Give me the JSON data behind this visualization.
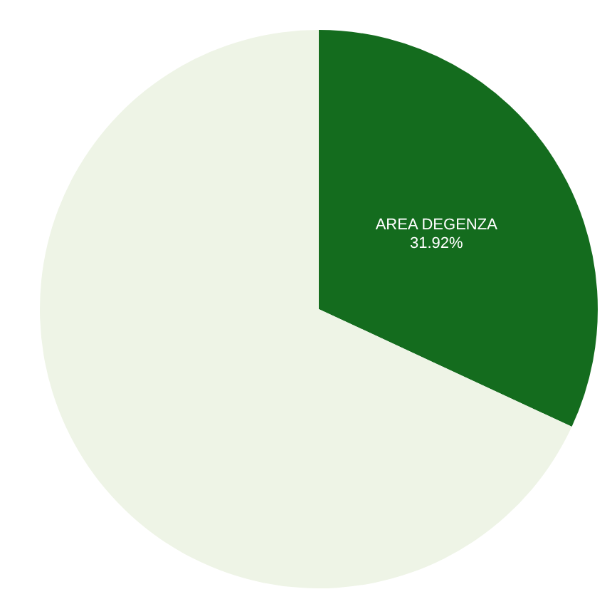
{
  "chart_data": {
    "type": "pie",
    "categories": [
      "AREA DEGENZA",
      null
    ],
    "values": [
      31.92,
      68.08
    ],
    "colors": [
      "#146c1e",
      "#eef4e6"
    ],
    "value_labels": [
      "31.92%",
      null
    ]
  }
}
